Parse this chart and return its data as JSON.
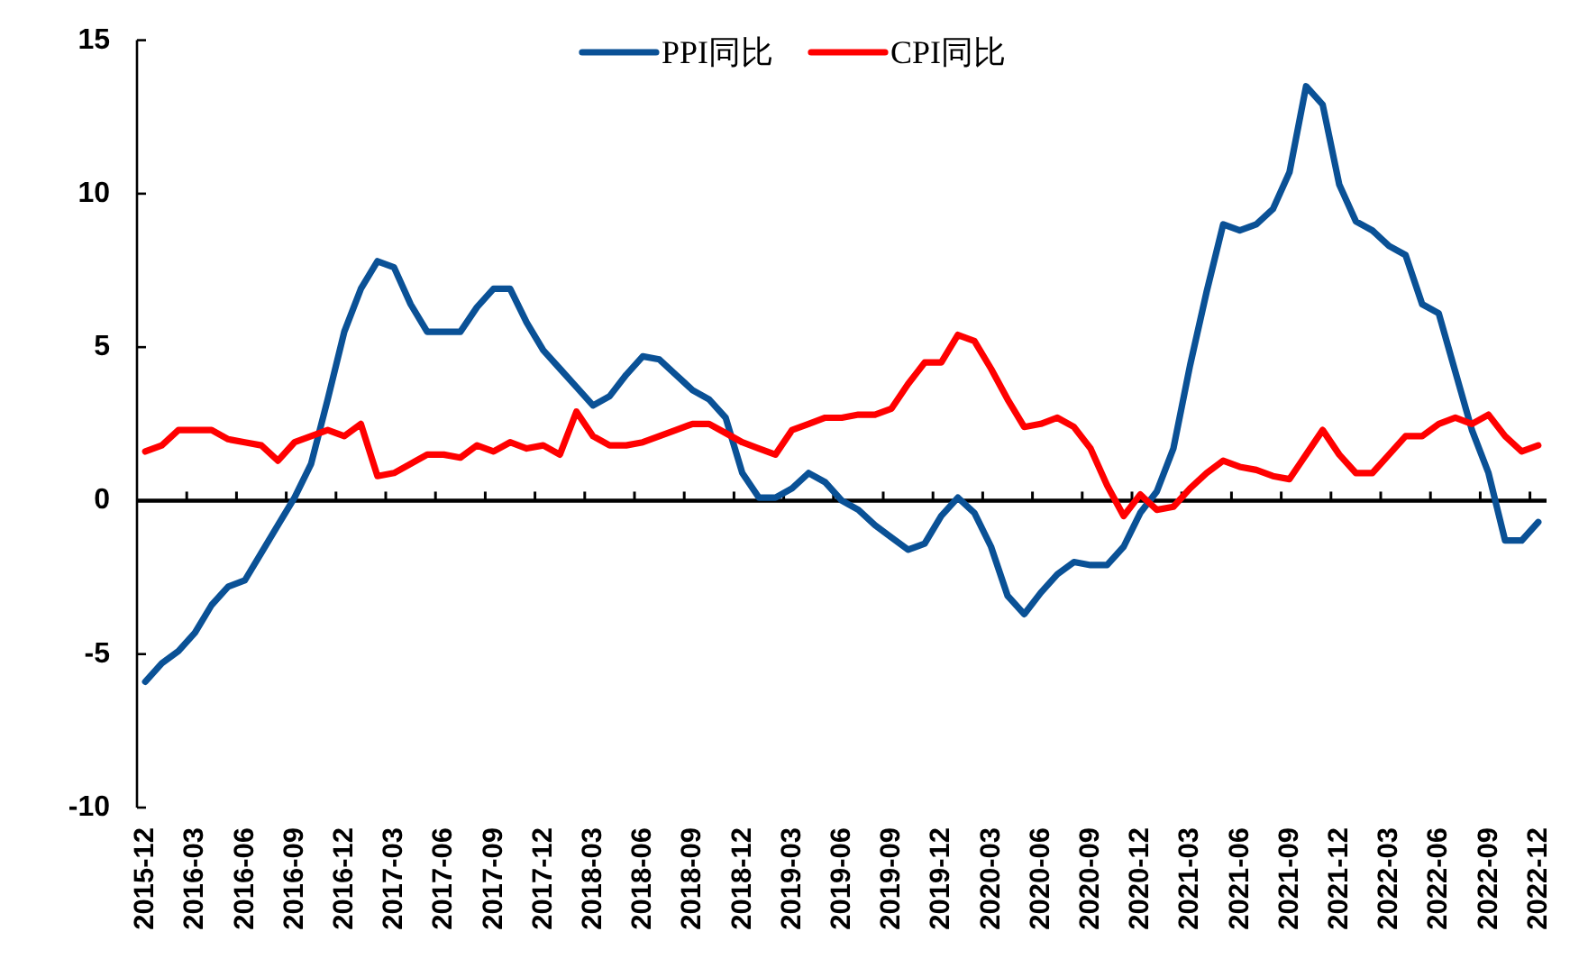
{
  "chart_data": {
    "type": "line",
    "categories": [
      "2015-12",
      null,
      null,
      "2016-03",
      null,
      null,
      "2016-06",
      null,
      null,
      "2016-09",
      null,
      null,
      "2016-12",
      null,
      null,
      "2017-03",
      null,
      null,
      "2017-06",
      null,
      null,
      "2017-09",
      null,
      null,
      "2017-12",
      null,
      null,
      "2018-03",
      null,
      null,
      "2018-06",
      null,
      null,
      "2018-09",
      null,
      null,
      "2018-12",
      null,
      null,
      "2019-03",
      null,
      null,
      "2019-06",
      null,
      null,
      "2019-09",
      null,
      null,
      "2019-12",
      null,
      null,
      "2020-03",
      null,
      null,
      "2020-06",
      null,
      null,
      "2020-09",
      null,
      null,
      "2020-12",
      null,
      null,
      "2021-03",
      null,
      null,
      "2021-06",
      null,
      null,
      "2021-09",
      null,
      null,
      "2021-12",
      null,
      null,
      "2022-03",
      null,
      null,
      "2022-06",
      null,
      null,
      "2022-09",
      null,
      null,
      "2022-12"
    ],
    "series": [
      {
        "name": "PPI同比",
        "color": "#0a5196",
        "values": [
          -5.9,
          -5.3,
          -4.9,
          -4.3,
          -3.4,
          -2.8,
          -2.6,
          -1.7,
          -0.8,
          0.1,
          1.2,
          3.3,
          5.5,
          6.9,
          7.8,
          7.6,
          6.4,
          5.5,
          5.5,
          5.5,
          6.3,
          6.9,
          6.9,
          5.8,
          4.9,
          4.3,
          3.7,
          3.1,
          3.4,
          4.1,
          4.7,
          4.6,
          4.1,
          3.6,
          3.3,
          2.7,
          0.9,
          0.1,
          0.1,
          0.4,
          0.9,
          0.6,
          0.0,
          -0.3,
          -0.8,
          -1.2,
          -1.6,
          -1.4,
          -0.5,
          0.1,
          -0.4,
          -1.5,
          -3.1,
          -3.7,
          -3.0,
          -2.4,
          -2.0,
          -2.1,
          -2.1,
          -1.5,
          -0.4,
          0.3,
          1.7,
          4.4,
          6.8,
          9.0,
          8.8,
          9.0,
          9.5,
          10.7,
          13.5,
          12.9,
          10.3,
          9.1,
          8.8,
          8.3,
          8.0,
          6.4,
          6.1,
          4.2,
          2.3,
          0.9,
          -1.3,
          -1.3,
          -0.7
        ]
      },
      {
        "name": "CPI同比",
        "color": "#ff0000",
        "values": [
          1.6,
          1.8,
          2.3,
          2.3,
          2.3,
          2.0,
          1.9,
          1.8,
          1.3,
          1.9,
          2.1,
          2.3,
          2.1,
          2.5,
          0.8,
          0.9,
          1.2,
          1.5,
          1.5,
          1.4,
          1.8,
          1.6,
          1.9,
          1.7,
          1.8,
          1.5,
          2.9,
          2.1,
          1.8,
          1.8,
          1.9,
          2.1,
          2.3,
          2.5,
          2.5,
          2.2,
          1.9,
          1.7,
          1.5,
          2.3,
          2.5,
          2.7,
          2.7,
          2.8,
          2.8,
          3.0,
          3.8,
          4.5,
          4.5,
          5.4,
          5.2,
          4.3,
          3.3,
          2.4,
          2.5,
          2.7,
          2.4,
          1.7,
          0.5,
          -0.5,
          0.2,
          -0.3,
          -0.2,
          0.4,
          0.9,
          1.3,
          1.1,
          1.0,
          0.8,
          0.7,
          1.5,
          2.3,
          1.5,
          0.9,
          0.9,
          1.5,
          2.1,
          2.1,
          2.5,
          2.7,
          2.5,
          2.8,
          2.1,
          1.6,
          1.8
        ]
      }
    ],
    "ylim": [
      -10,
      15
    ],
    "yticks": [
      -10,
      -5,
      0,
      5,
      10,
      15
    ],
    "legend": "top"
  }
}
